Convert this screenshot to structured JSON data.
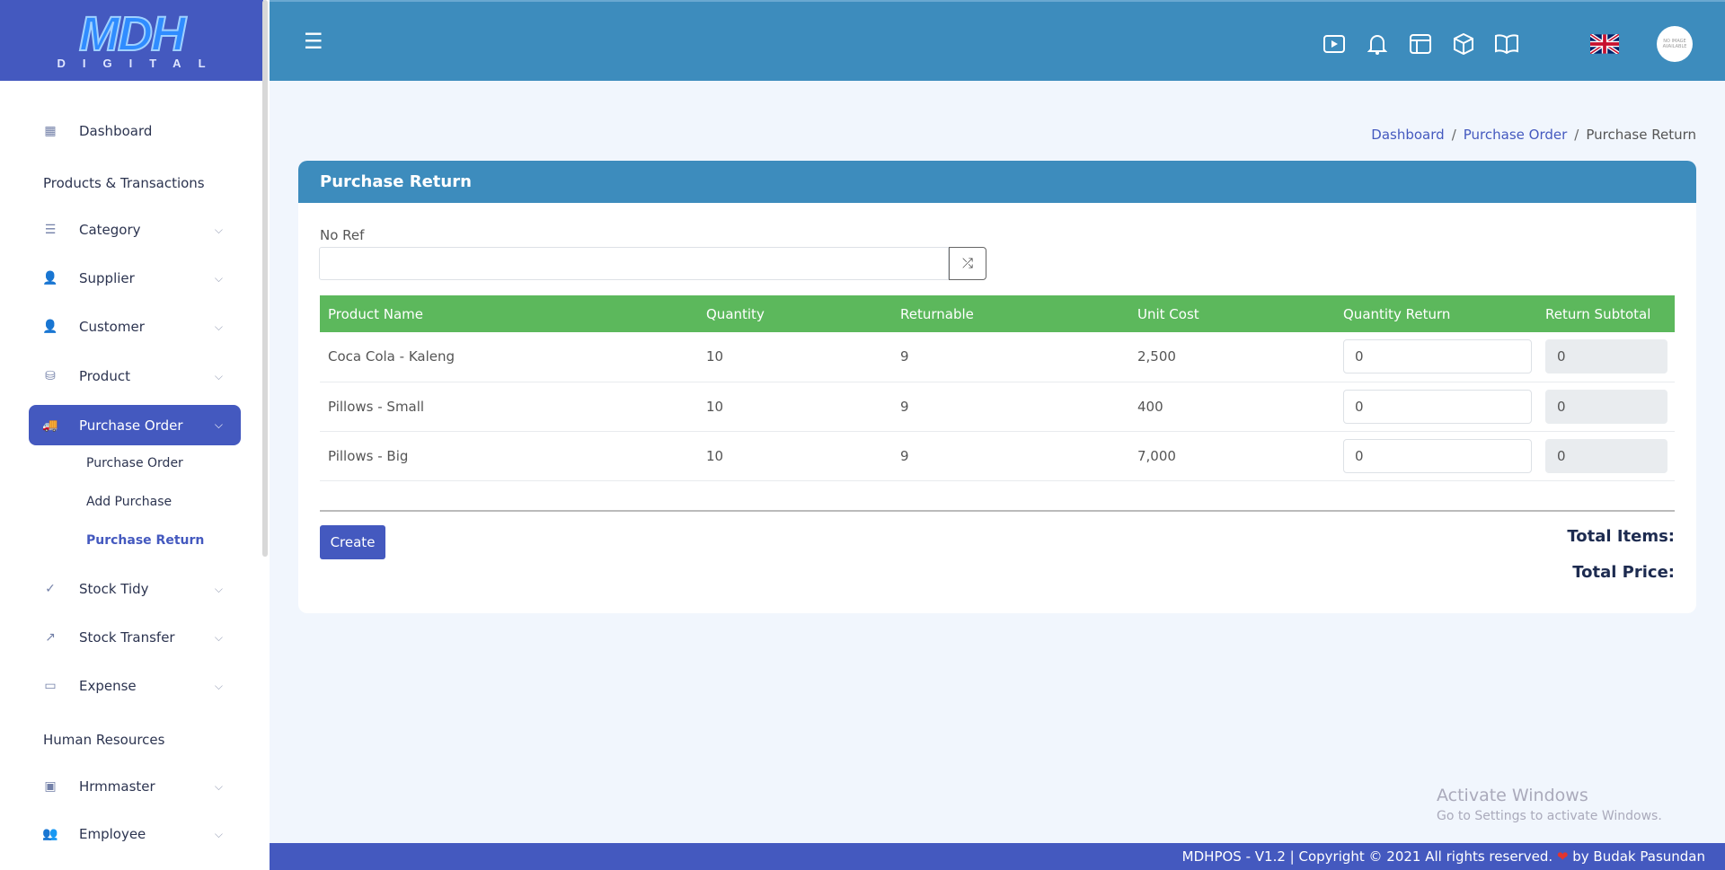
{
  "logo": {
    "text": "MDH",
    "subtext": "DIGITAL"
  },
  "sidebar": {
    "items": [
      {
        "label": "Dashboard",
        "icon": "grid-icon"
      },
      {
        "section": "Products & Transactions"
      },
      {
        "label": "Category",
        "icon": "list-icon"
      },
      {
        "label": "Supplier",
        "icon": "user-tie-icon"
      },
      {
        "label": "Customer",
        "icon": "user-icon"
      },
      {
        "label": "Product",
        "icon": "cubes-icon"
      },
      {
        "label": "Purchase Order",
        "icon": "truck-icon",
        "active": true
      },
      {
        "label": "Stock Tidy",
        "icon": "check-circle-icon"
      },
      {
        "label": "Stock Transfer",
        "icon": "share-icon"
      },
      {
        "label": "Expense",
        "icon": "money-icon"
      },
      {
        "section": "Human Resources"
      },
      {
        "label": "Hrmmaster",
        "icon": "id-badge-icon"
      },
      {
        "label": "Employee",
        "icon": "users-icon"
      }
    ],
    "sub_items": [
      "Purchase Order",
      "Add Purchase",
      "Purchase Return"
    ]
  },
  "header": {
    "avatar_text": "NO IMAGE AVAILABLE"
  },
  "breadcrumb": [
    "Dashboard",
    "Purchase Order",
    "Purchase Return"
  ],
  "card": {
    "title": "Purchase Return",
    "no_ref_label": "No Ref",
    "no_ref_value": "",
    "columns": [
      "Product Name",
      "Quantity",
      "Returnable",
      "Unit Cost",
      "Quantity Return",
      "Return Subtotal"
    ],
    "rows": [
      {
        "name": "Coca Cola - Kaleng",
        "quantity": "10",
        "returnable": "9",
        "unit_cost": "2,500",
        "qty_return": "0",
        "subtotal": "0"
      },
      {
        "name": "Pillows - Small",
        "quantity": "10",
        "returnable": "9",
        "unit_cost": "400",
        "qty_return": "0",
        "subtotal": "0"
      },
      {
        "name": "Pillows - Big",
        "quantity": "10",
        "returnable": "9",
        "unit_cost": "7,000",
        "qty_return": "0",
        "subtotal": "0"
      }
    ],
    "create_label": "Create",
    "total_items_label": "Total Items:",
    "total_price_label": "Total Price:"
  },
  "watermark": {
    "title": "Activate Windows",
    "subtitle": "Go to Settings to activate Windows."
  },
  "footer": {
    "text": "MDHPOS - V1.2 | Copyright © 2021 All rights reserved.",
    "by": "by Budak Pasundan"
  },
  "colors": {
    "primary": "#4459bf",
    "header": "#3d8cbd",
    "table_header": "#5cb85c"
  }
}
